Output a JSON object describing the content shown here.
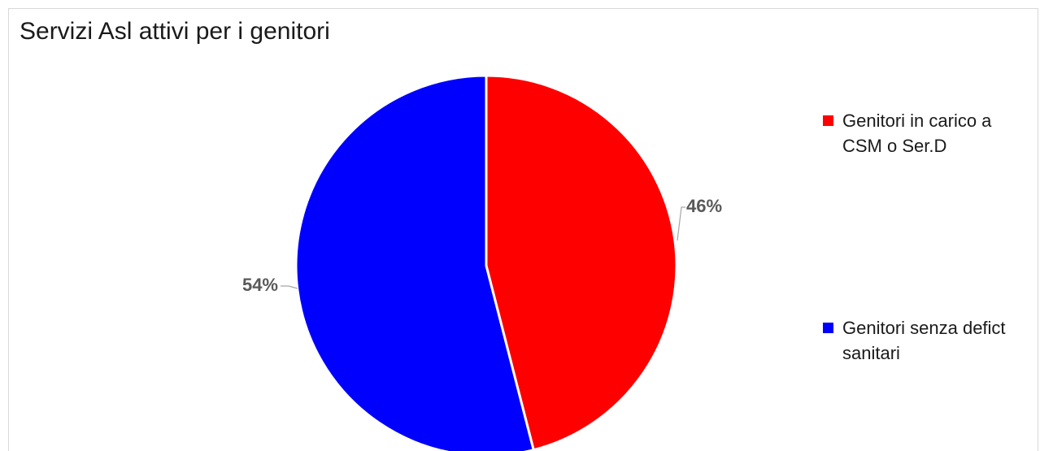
{
  "chart_data": {
    "type": "pie",
    "title": "Servizi Asl attivi per i genitori",
    "slices": [
      {
        "label": "Genitori in carico a CSM o Ser.D",
        "value": 46,
        "display": "46%",
        "color": "#ff0000"
      },
      {
        "label": "Genitori senza defict sanitari",
        "value": 54,
        "display": "54%",
        "color": "#0000ff"
      }
    ],
    "start_angle_deg": 0,
    "direction": "clockwise",
    "legend_position": "right"
  }
}
